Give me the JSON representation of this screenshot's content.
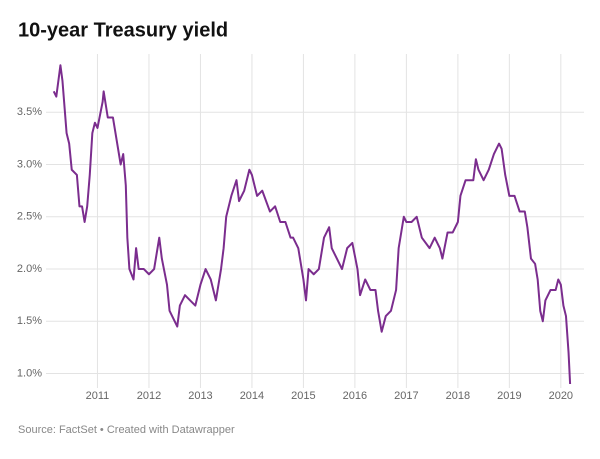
{
  "chart_data": {
    "type": "line",
    "title": "10-year Treasury yield",
    "source": "Source: FactSet • Created with Datawrapper",
    "x": [
      2010.15,
      2010.2,
      2010.28,
      2010.32,
      2010.4,
      2010.45,
      2010.5,
      2010.6,
      2010.65,
      2010.7,
      2010.75,
      2010.8,
      2010.85,
      2010.9,
      2010.95,
      2011.0,
      2011.1,
      2011.12,
      2011.2,
      2011.3,
      2011.4,
      2011.45,
      2011.5,
      2011.55,
      2011.58,
      2011.62,
      2011.7,
      2011.75,
      2011.8,
      2011.9,
      2012.0,
      2012.1,
      2012.2,
      2012.25,
      2012.35,
      2012.4,
      2012.5,
      2012.55,
      2012.6,
      2012.7,
      2012.8,
      2012.9,
      2013.0,
      2013.1,
      2013.2,
      2013.3,
      2013.4,
      2013.45,
      2013.5,
      2013.6,
      2013.7,
      2013.75,
      2013.85,
      2013.95,
      2014.0,
      2014.1,
      2014.2,
      2014.35,
      2014.45,
      2014.55,
      2014.65,
      2014.75,
      2014.8,
      2014.9,
      2015.0,
      2015.05,
      2015.1,
      2015.2,
      2015.3,
      2015.4,
      2015.5,
      2015.55,
      2015.65,
      2015.75,
      2015.85,
      2015.95,
      2016.05,
      2016.1,
      2016.2,
      2016.3,
      2016.4,
      2016.45,
      2016.52,
      2016.6,
      2016.7,
      2016.8,
      2016.85,
      2016.95,
      2017.0,
      2017.1,
      2017.2,
      2017.3,
      2017.45,
      2017.55,
      2017.65,
      2017.7,
      2017.8,
      2017.9,
      2018.0,
      2018.05,
      2018.15,
      2018.3,
      2018.35,
      2018.4,
      2018.5,
      2018.6,
      2018.7,
      2018.8,
      2018.85,
      2018.92,
      2019.0,
      2019.1,
      2019.2,
      2019.3,
      2019.35,
      2019.42,
      2019.5,
      2019.55,
      2019.6,
      2019.65,
      2019.7,
      2019.8,
      2019.9,
      2019.95,
      2020.0,
      2020.05,
      2020.1,
      2020.15,
      2020.18
    ],
    "series": [
      {
        "name": "10-year Treasury yield",
        "color": "#7b2d8e",
        "values": [
          3.7,
          3.65,
          3.95,
          3.8,
          3.3,
          3.2,
          2.95,
          2.9,
          2.6,
          2.6,
          2.45,
          2.6,
          2.9,
          3.3,
          3.4,
          3.35,
          3.6,
          3.7,
          3.45,
          3.45,
          3.15,
          3.0,
          3.1,
          2.8,
          2.3,
          2.0,
          1.9,
          2.2,
          2.0,
          2.0,
          1.95,
          2.0,
          2.3,
          2.1,
          1.85,
          1.6,
          1.5,
          1.45,
          1.65,
          1.75,
          1.7,
          1.65,
          1.85,
          2.0,
          1.9,
          1.7,
          2.0,
          2.2,
          2.5,
          2.7,
          2.85,
          2.65,
          2.75,
          2.95,
          2.9,
          2.7,
          2.75,
          2.55,
          2.6,
          2.45,
          2.45,
          2.3,
          2.3,
          2.2,
          1.9,
          1.7,
          2.0,
          1.95,
          2.0,
          2.3,
          2.4,
          2.2,
          2.1,
          2.0,
          2.2,
          2.25,
          2.0,
          1.75,
          1.9,
          1.8,
          1.8,
          1.6,
          1.4,
          1.55,
          1.6,
          1.8,
          2.2,
          2.5,
          2.45,
          2.45,
          2.5,
          2.3,
          2.2,
          2.3,
          2.2,
          2.1,
          2.35,
          2.35,
          2.45,
          2.7,
          2.85,
          2.85,
          3.05,
          2.95,
          2.85,
          2.95,
          3.1,
          3.2,
          3.15,
          2.9,
          2.7,
          2.7,
          2.55,
          2.55,
          2.4,
          2.1,
          2.05,
          1.9,
          1.6,
          1.5,
          1.7,
          1.8,
          1.8,
          1.9,
          1.85,
          1.65,
          1.55,
          1.2,
          0.9
        ]
      }
    ],
    "xlim": [
      2010.0,
      2020.45
    ],
    "xticks": [
      2011,
      2012,
      2013,
      2014,
      2015,
      2016,
      2017,
      2018,
      2019,
      2020
    ],
    "ylim": [
      0.9,
      4.0
    ],
    "yticks": [
      {
        "value": 1.0,
        "label": "1.0%"
      },
      {
        "value": 1.5,
        "label": "1.5%"
      },
      {
        "value": 2.0,
        "label": "2.0%"
      },
      {
        "value": 2.5,
        "label": "2.5%"
      },
      {
        "value": 3.0,
        "label": "3.0%"
      },
      {
        "value": 3.5,
        "label": "3.5%"
      }
    ],
    "grid": true
  }
}
